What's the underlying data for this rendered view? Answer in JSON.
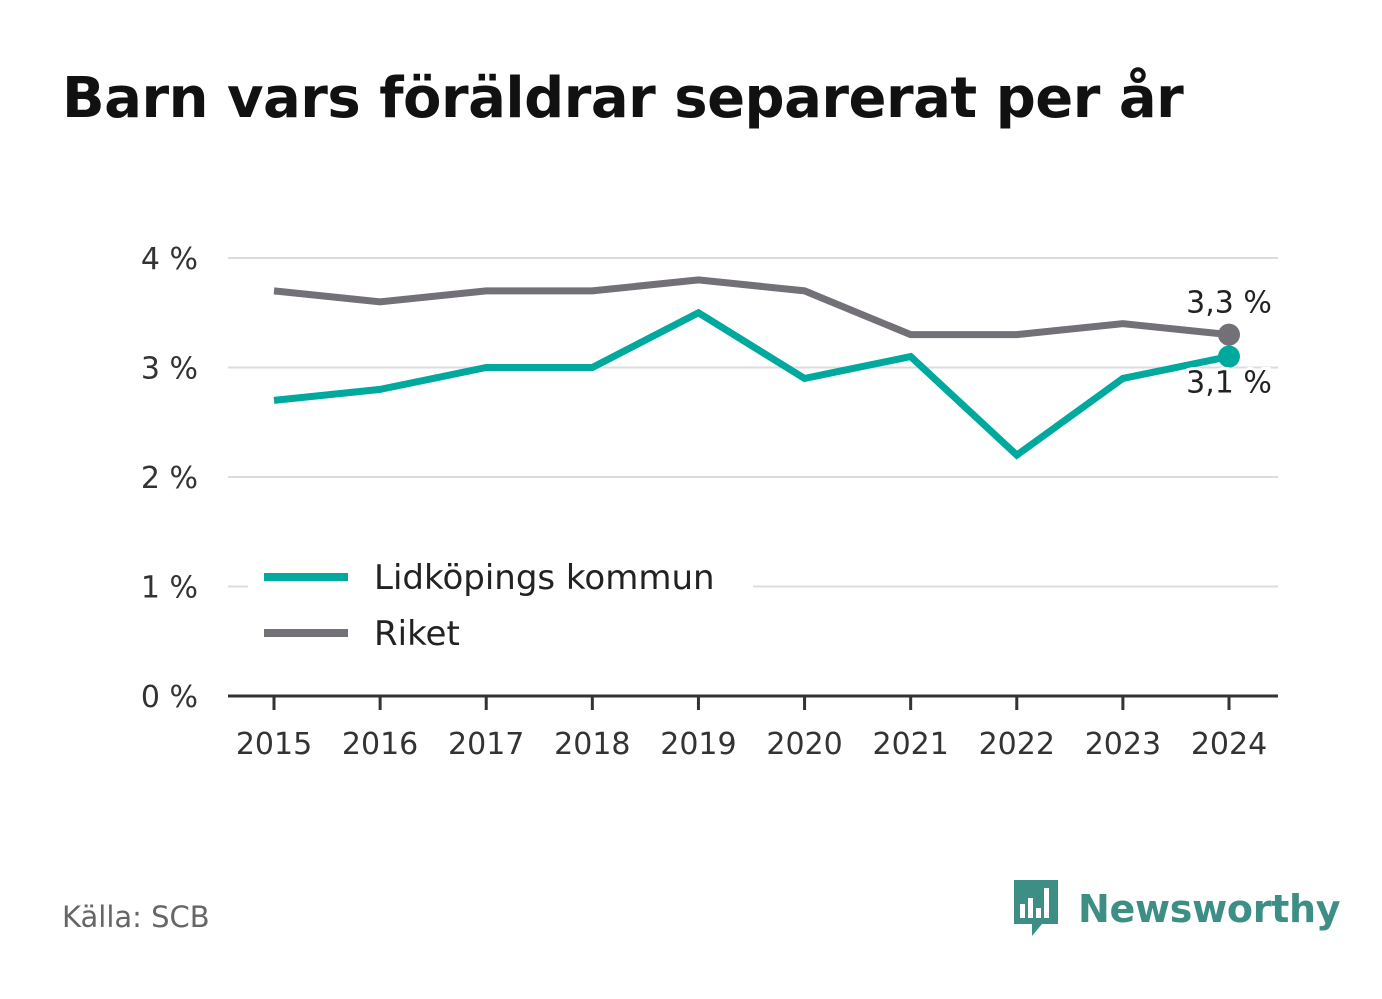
{
  "title": "Barn vars föräldrar separerat per år",
  "source": "Källa: SCB",
  "brand": {
    "name": "Newsworthy",
    "icon": "newsworthy-logo-icon",
    "color": "#3d8f86"
  },
  "chart_data": {
    "type": "line",
    "title": "Barn vars föräldrar separerat per år",
    "x": [
      "2015",
      "2016",
      "2017",
      "2018",
      "2019",
      "2020",
      "2021",
      "2022",
      "2023",
      "2024"
    ],
    "series": [
      {
        "name": "Lidköpings kommun",
        "color": "#00a99d",
        "values": [
          2.7,
          2.8,
          3.0,
          3.0,
          3.5,
          2.9,
          3.1,
          2.2,
          2.9,
          3.1
        ],
        "end_label": "3,1 %"
      },
      {
        "name": "Riket",
        "color": "#737078",
        "values": [
          3.7,
          3.6,
          3.7,
          3.7,
          3.8,
          3.7,
          3.3,
          3.3,
          3.4,
          3.3
        ],
        "end_label": "3,3 %"
      }
    ],
    "y_ticks": [
      0,
      1,
      2,
      3,
      4
    ],
    "y_tick_labels": [
      "0 %",
      "1 %",
      "2 %",
      "3 %",
      "4 %"
    ],
    "ylim": [
      0,
      4
    ],
    "grid": true,
    "legend": "bottom-left inside plot"
  }
}
